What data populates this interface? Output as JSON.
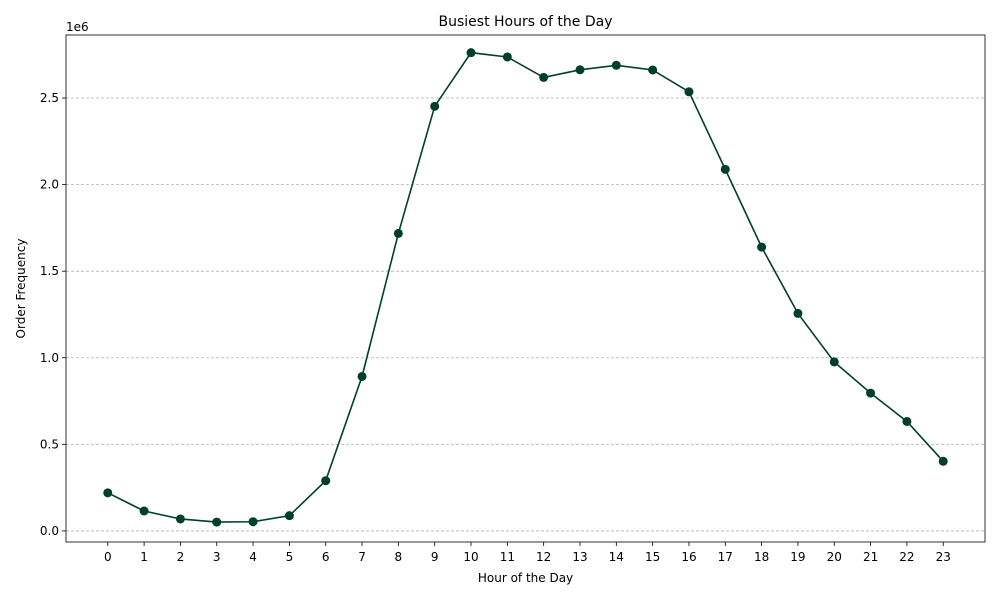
{
  "chart_data": {
    "type": "line",
    "title": "Busiest Hours of the Day",
    "xlabel": "Hour of the Day",
    "ylabel": "Order Frequency",
    "y_offset_label": "1e6",
    "y_scale": 1000000,
    "x": [
      0,
      1,
      2,
      3,
      4,
      5,
      6,
      7,
      8,
      9,
      10,
      11,
      12,
      13,
      14,
      15,
      16,
      17,
      18,
      19,
      20,
      21,
      22,
      23
    ],
    "x_tick_labels": [
      "0",
      "1",
      "2",
      "3",
      "4",
      "5",
      "6",
      "7",
      "8",
      "9",
      "10",
      "11",
      "12",
      "13",
      "14",
      "15",
      "16",
      "17",
      "18",
      "19",
      "20",
      "21",
      "22",
      "23"
    ],
    "xlim": [
      -1.15,
      24.15
    ],
    "series": [
      {
        "values": [
          220000,
          115000,
          69000,
          51000,
          53000,
          88000,
          290000,
          892000,
          1718000,
          2452000,
          2762000,
          2737000,
          2619000,
          2663000,
          2689000,
          2662000,
          2536000,
          2088000,
          1639000,
          1256000,
          976000,
          796000,
          632000,
          402000
        ],
        "color": "#00402a"
      }
    ],
    "y_ticks": [
      0,
      500000,
      1000000,
      1500000,
      2000000,
      2500000
    ],
    "y_tick_labels": [
      "0.0",
      "0.5",
      "1.0",
      "1.5",
      "2.0",
      "2.5"
    ],
    "ylim": [
      -64000,
      2864000
    ],
    "grid": "y-dashed",
    "legend": "none",
    "marker": "circle"
  }
}
